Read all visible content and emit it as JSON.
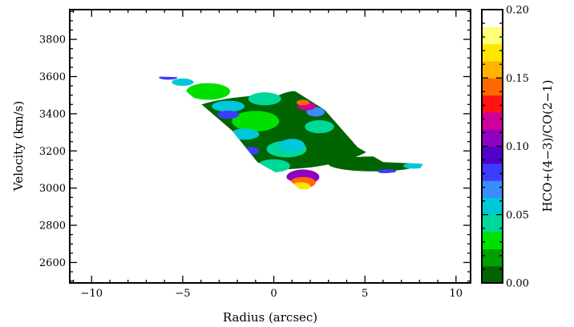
{
  "chart_data": {
    "type": "heatmap",
    "title": "",
    "xlabel": "Radius (arcsec)",
    "ylabel": "Velocity (km/s)",
    "xlim": [
      -11.2,
      10.8
    ],
    "ylim": [
      2490,
      3960
    ],
    "xticks": [
      -10,
      -5,
      0,
      5,
      10
    ],
    "xtick_labels": [
      "−10",
      "−5",
      "0",
      "5",
      "10"
    ],
    "yticks": [
      2600,
      2800,
      3000,
      3200,
      3400,
      3600,
      3800
    ],
    "ytick_labels": [
      "2600",
      "2800",
      "3000",
      "3200",
      "3400",
      "3600",
      "3800"
    ],
    "colorbar": {
      "label": "HCO+(4−3)/CO(2−1)",
      "range": [
        0.0,
        0.2
      ],
      "ticks": [
        0.0,
        0.05,
        0.1,
        0.15,
        0.2
      ],
      "tick_labels": [
        "0.00",
        "0.05",
        "0.10",
        "0.15",
        "0.20"
      ],
      "palette": [
        "#006400",
        "#00a000",
        "#00e000",
        "#00d89a",
        "#00c8d8",
        "#3a8cff",
        "#3c3cff",
        "#5000c8",
        "#9000c0",
        "#d0009a",
        "#ff1414",
        "#ff6a00",
        "#ffb400",
        "#ffe600",
        "#ffff7a",
        "#ffffff"
      ]
    },
    "region": {
      "upper_edge": [
        [
          -6.4,
          3600
        ],
        [
          -2.8,
          3590
        ],
        [
          1.2,
          3520
        ],
        [
          2.8,
          3420
        ],
        [
          4.6,
          3220
        ],
        [
          6.0,
          3140
        ],
        [
          8.2,
          3130
        ]
      ],
      "lower_edge": [
        [
          8.0,
          3100
        ],
        [
          6.2,
          3080
        ],
        [
          4.4,
          3085
        ],
        [
          3.0,
          3060
        ],
        [
          2.1,
          2990
        ],
        [
          1.4,
          2995
        ],
        [
          0.9,
          3040
        ],
        [
          -0.9,
          3140
        ],
        [
          -2.3,
          3310
        ],
        [
          -4.8,
          3520
        ],
        [
          -6.4,
          3590
        ]
      ]
    },
    "patches": [
      {
        "x": 0.0,
        "y": 3300,
        "rx": 6.0,
        "ry": 200,
        "value": 0.008
      },
      {
        "x": 1.5,
        "y": 3450,
        "rx": 1.6,
        "ry": 75,
        "value": 0.012
      },
      {
        "x": 5.5,
        "y": 3130,
        "rx": 2.5,
        "ry": 40,
        "value": 0.01
      },
      {
        "x": -3.6,
        "y": 3520,
        "rx": 1.2,
        "ry": 45,
        "value": 0.035
      },
      {
        "x": -1.0,
        "y": 3360,
        "rx": 1.3,
        "ry": 55,
        "value": 0.035
      },
      {
        "x": 0.7,
        "y": 3210,
        "rx": 1.1,
        "ry": 45,
        "value": 0.038
      },
      {
        "x": -0.5,
        "y": 3480,
        "rx": 0.9,
        "ry": 35,
        "value": 0.04
      },
      {
        "x": 2.5,
        "y": 3330,
        "rx": 0.8,
        "ry": 35,
        "value": 0.04
      },
      {
        "x": 0.0,
        "y": 3120,
        "rx": 0.9,
        "ry": 35,
        "value": 0.045
      },
      {
        "x": -2.5,
        "y": 3440,
        "rx": 0.9,
        "ry": 30,
        "value": 0.05
      },
      {
        "x": 1.0,
        "y": 3230,
        "rx": 0.7,
        "ry": 35,
        "value": 0.055
      },
      {
        "x": -1.6,
        "y": 3290,
        "rx": 0.8,
        "ry": 30,
        "value": 0.06
      },
      {
        "x": -5.0,
        "y": 3570,
        "rx": 0.6,
        "ry": 20,
        "value": 0.058
      },
      {
        "x": 7.7,
        "y": 3120,
        "rx": 0.6,
        "ry": 15,
        "value": 0.06
      },
      {
        "x": 2.3,
        "y": 3410,
        "rx": 0.5,
        "ry": 25,
        "value": 0.075
      },
      {
        "x": -2.5,
        "y": 3395,
        "rx": 0.6,
        "ry": 22,
        "value": 0.08
      },
      {
        "x": -1.3,
        "y": 3200,
        "rx": 0.5,
        "ry": 22,
        "value": 0.08
      },
      {
        "x": -5.8,
        "y": 3595,
        "rx": 0.5,
        "ry": 12,
        "value": 0.085
      },
      {
        "x": 6.2,
        "y": 3090,
        "rx": 0.5,
        "ry": 12,
        "value": 0.085
      },
      {
        "x": 1.6,
        "y": 3060,
        "rx": 0.9,
        "ry": 40,
        "value": 0.11
      },
      {
        "x": 1.6,
        "y": 3030,
        "rx": 0.7,
        "ry": 30,
        "value": 0.14
      },
      {
        "x": 1.5,
        "y": 3010,
        "rx": 0.5,
        "ry": 22,
        "value": 0.165
      },
      {
        "x": 1.8,
        "y": 3440,
        "rx": 0.5,
        "ry": 22,
        "value": 0.12
      },
      {
        "x": 1.6,
        "y": 3460,
        "rx": 0.35,
        "ry": 15,
        "value": 0.15
      }
    ]
  }
}
